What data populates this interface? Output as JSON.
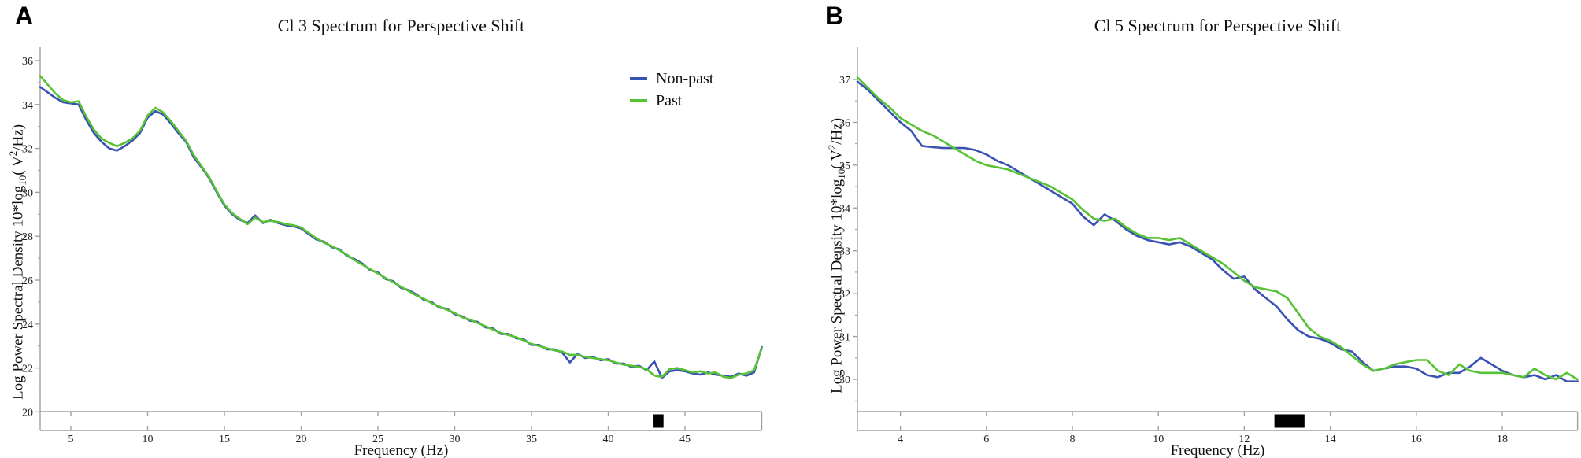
{
  "figure": {
    "panels": [
      {
        "panel_label": "A",
        "title": "Cl 3 Spectrum for Perspective Shift",
        "xlabel": "Frequency (Hz)",
        "ylabel_rich": {
          "pre": "Log Power Spectral Density 10*log",
          "sub": "10",
          "mid": "( V",
          "sup": "2",
          "post": "/Hz)"
        }
      },
      {
        "panel_label": "B",
        "title": "Cl 5 Spectrum for Perspective Shift",
        "xlabel": "Frequency (Hz)",
        "ylabel_rich": {
          "pre": "Log Power Spectral Density 10*log",
          "sub": "10",
          "mid": "( V",
          "sup": "2",
          "post": "/Hz)"
        }
      }
    ]
  },
  "chart_data": [
    {
      "type": "line",
      "title": "Cl 3 Spectrum for Perspective Shift",
      "xlabel": "Frequency (Hz)",
      "ylabel": "Log Power Spectral Density 10*log10( V2/Hz)",
      "xlim": [
        3,
        50
      ],
      "ylim": [
        20,
        36
      ],
      "xticks": [
        5,
        10,
        15,
        20,
        25,
        30,
        35,
        40,
        45
      ],
      "yticks": [
        20,
        22,
        24,
        26,
        28,
        30,
        32,
        34,
        36
      ],
      "yticks_minor": [
        21,
        23,
        25,
        27,
        29,
        31,
        33,
        35
      ],
      "grid": false,
      "legend_position": "upper-right",
      "significance_marker_hz": [
        42.9,
        43.6
      ],
      "marker_color": "#000000",
      "x": [
        3,
        3.5,
        4,
        4.5,
        5,
        5.5,
        6,
        6.5,
        7,
        7.5,
        8,
        8.5,
        9,
        9.5,
        10,
        10.5,
        11,
        11.5,
        12,
        12.5,
        13,
        13.5,
        14,
        14.5,
        15,
        15.5,
        16,
        16.5,
        17,
        17.5,
        18,
        18.5,
        19,
        19.5,
        20,
        20.5,
        21,
        21.5,
        22,
        22.5,
        23,
        23.5,
        24,
        24.5,
        25,
        25.5,
        26,
        26.5,
        27,
        27.5,
        28,
        28.5,
        29,
        29.5,
        30,
        30.5,
        31,
        31.5,
        32,
        32.5,
        33,
        33.5,
        34,
        34.5,
        35,
        35.5,
        36,
        36.5,
        37,
        37.5,
        38,
        38.5,
        39,
        39.5,
        40,
        40.5,
        41,
        41.5,
        42,
        42.5,
        43,
        43.5,
        44,
        44.5,
        45,
        45.5,
        46,
        46.5,
        47,
        47.5,
        48,
        48.5,
        49,
        49.5,
        50
      ],
      "series": [
        {
          "name": "Non-past",
          "color": "#3a52b4",
          "values": [
            34.8,
            34.55,
            34.3,
            34.1,
            34.05,
            34.0,
            33.3,
            32.7,
            32.3,
            32.0,
            31.9,
            32.1,
            32.35,
            32.7,
            33.4,
            33.7,
            33.55,
            33.15,
            32.7,
            32.3,
            31.6,
            31.15,
            30.65,
            30.0,
            29.4,
            29.0,
            28.75,
            28.6,
            28.95,
            28.6,
            28.75,
            28.6,
            28.5,
            28.45,
            28.35,
            28.1,
            27.85,
            27.75,
            27.5,
            27.4,
            27.1,
            26.95,
            26.75,
            26.45,
            26.35,
            26.05,
            25.95,
            25.65,
            25.55,
            25.35,
            25.1,
            25.0,
            24.75,
            24.7,
            24.45,
            24.35,
            24.15,
            24.1,
            23.85,
            23.8,
            23.55,
            23.55,
            23.35,
            23.3,
            23.05,
            23.05,
            22.85,
            22.85,
            22.7,
            22.25,
            22.65,
            22.45,
            22.5,
            22.35,
            22.4,
            22.2,
            22.2,
            22.05,
            22.1,
            21.9,
            22.3,
            21.55,
            21.85,
            21.9,
            21.85,
            21.75,
            21.7,
            21.8,
            21.7,
            21.65,
            21.6,
            21.75,
            21.65,
            21.8,
            22.95
          ]
        },
        {
          "name": "Past",
          "color": "#56c234",
          "values": [
            35.3,
            34.9,
            34.5,
            34.2,
            34.1,
            34.15,
            33.45,
            32.85,
            32.45,
            32.25,
            32.1,
            32.25,
            32.45,
            32.8,
            33.5,
            33.85,
            33.65,
            33.25,
            32.8,
            32.35,
            31.7,
            31.2,
            30.7,
            30.05,
            29.45,
            29.05,
            28.8,
            28.55,
            28.85,
            28.65,
            28.7,
            28.65,
            28.55,
            28.5,
            28.4,
            28.15,
            27.9,
            27.7,
            27.55,
            27.35,
            27.15,
            26.9,
            26.7,
            26.5,
            26.3,
            26.1,
            25.9,
            25.7,
            25.5,
            25.3,
            25.15,
            24.95,
            24.8,
            24.65,
            24.5,
            24.3,
            24.2,
            24.05,
            23.9,
            23.75,
            23.6,
            23.5,
            23.4,
            23.25,
            23.1,
            23.0,
            22.9,
            22.8,
            22.75,
            22.6,
            22.6,
            22.5,
            22.45,
            22.4,
            22.35,
            22.25,
            22.15,
            22.1,
            22.05,
            21.95,
            21.65,
            21.6,
            21.95,
            22.0,
            21.9,
            21.8,
            21.85,
            21.75,
            21.8,
            21.6,
            21.55,
            21.7,
            21.75,
            21.9,
            22.9
          ]
        }
      ]
    },
    {
      "type": "line",
      "title": "Cl 5 Spectrum for Perspective Shift",
      "xlabel": "Frequency (Hz)",
      "ylabel": "Log Power Spectral Density 10*log10( V2/Hz)",
      "xlim": [
        3,
        19.75
      ],
      "ylim": [
        29.2,
        37
      ],
      "xticks": [
        4,
        6,
        8,
        10,
        12,
        14,
        16,
        18
      ],
      "yticks": [
        30,
        31,
        32,
        33,
        34,
        35,
        36,
        37
      ],
      "yticks_minor": [
        29.5,
        30.5,
        31.5,
        32.5,
        33.5,
        34.5,
        35.5,
        36.5
      ],
      "grid": false,
      "legend_position": "none",
      "significance_marker_hz": [
        12.7,
        13.4
      ],
      "marker_color": "#000000",
      "x": [
        3,
        3.25,
        3.5,
        3.75,
        4,
        4.25,
        4.5,
        4.75,
        5,
        5.25,
        5.5,
        5.75,
        6,
        6.25,
        6.5,
        6.75,
        7,
        7.25,
        7.5,
        7.75,
        8,
        8.25,
        8.5,
        8.75,
        9,
        9.25,
        9.5,
        9.75,
        10,
        10.25,
        10.5,
        10.75,
        11,
        11.25,
        11.5,
        11.75,
        12,
        12.25,
        12.5,
        12.75,
        13,
        13.25,
        13.5,
        13.75,
        14,
        14.25,
        14.5,
        14.75,
        15,
        15.25,
        15.5,
        15.75,
        16,
        16.25,
        16.5,
        16.75,
        17,
        17.25,
        17.5,
        17.75,
        18,
        18.25,
        18.5,
        18.75,
        19,
        19.25,
        19.5,
        19.75
      ],
      "series": [
        {
          "name": "Non-past",
          "color": "#3a52b4",
          "values": [
            36.95,
            36.75,
            36.5,
            36.25,
            36.0,
            35.8,
            35.45,
            35.42,
            35.4,
            35.4,
            35.4,
            35.35,
            35.25,
            35.1,
            35.0,
            34.85,
            34.7,
            34.55,
            34.4,
            34.25,
            34.1,
            33.8,
            33.6,
            33.85,
            33.7,
            33.5,
            33.35,
            33.25,
            33.2,
            33.15,
            33.2,
            33.1,
            32.95,
            32.8,
            32.55,
            32.35,
            32.4,
            32.1,
            31.9,
            31.7,
            31.4,
            31.15,
            31.0,
            30.95,
            30.85,
            30.7,
            30.65,
            30.4,
            30.2,
            30.25,
            30.3,
            30.3,
            30.25,
            30.1,
            30.05,
            30.15,
            30.15,
            30.3,
            30.5,
            30.35,
            30.2,
            30.1,
            30.05,
            30.1,
            30.0,
            30.1,
            29.95,
            29.95
          ]
        },
        {
          "name": "Past",
          "color": "#56c234",
          "values": [
            37.05,
            36.8,
            36.55,
            36.35,
            36.1,
            35.95,
            35.8,
            35.7,
            35.55,
            35.4,
            35.25,
            35.1,
            35.0,
            34.95,
            34.9,
            34.8,
            34.7,
            34.6,
            34.5,
            34.35,
            34.2,
            33.95,
            33.75,
            33.7,
            33.75,
            33.55,
            33.4,
            33.3,
            33.3,
            33.25,
            33.3,
            33.15,
            33.0,
            32.85,
            32.7,
            32.5,
            32.3,
            32.15,
            32.1,
            32.05,
            31.9,
            31.55,
            31.2,
            31.0,
            30.9,
            30.75,
            30.55,
            30.35,
            30.2,
            30.25,
            30.35,
            30.4,
            30.45,
            30.45,
            30.2,
            30.1,
            30.35,
            30.2,
            30.15,
            30.15,
            30.15,
            30.1,
            30.05,
            30.25,
            30.1,
            30.0,
            30.15,
            30.0
          ]
        }
      ]
    }
  ]
}
